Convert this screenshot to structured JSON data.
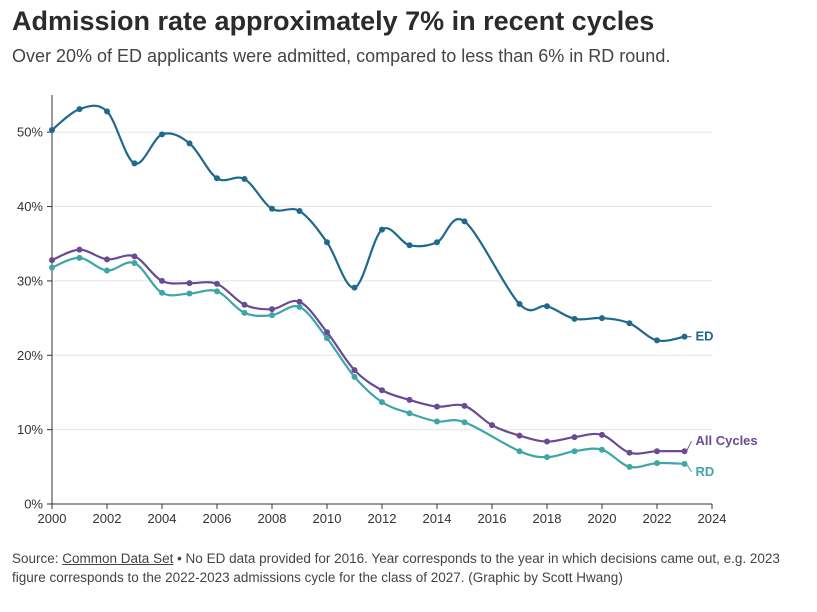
{
  "header": {
    "title": "Admission rate approximately 7% in recent cycles",
    "subtitle": "Over 20% of ED applicants were admitted, compared to less than 6% in RD round."
  },
  "footer": {
    "source_prefix": "Source: ",
    "source_link": "Common Data Set",
    "source_text": " • No ED data provided for 2016. Year corresponds to the year in which decisions came out, e.g. 2023 figure corresponds to the 2022-2023 admissions cycle for the class of 2027. (Graphic by Scott Hwang)"
  },
  "chart_data": {
    "type": "line",
    "title": "Admission rate approximately 7% in recent cycles",
    "xlabel": "",
    "ylabel": "",
    "xlim": [
      2000,
      2024
    ],
    "ylim": [
      0,
      55
    ],
    "x_ticks": [
      2000,
      2002,
      2004,
      2006,
      2008,
      2010,
      2012,
      2014,
      2016,
      2018,
      2020,
      2022,
      2024
    ],
    "y_ticks": [
      0,
      10,
      20,
      30,
      40,
      50
    ],
    "y_tick_labels": [
      "0%",
      "10%",
      "20%",
      "30%",
      "40%",
      "50%"
    ],
    "grid": "horizontal",
    "series": [
      {
        "name": "ED",
        "color": "#1f6a8c",
        "x": [
          2000,
          2001,
          2002,
          2003,
          2004,
          2005,
          2006,
          2007,
          2008,
          2009,
          2010,
          2011,
          2012,
          2013,
          2014,
          2015,
          2017,
          2018,
          2019,
          2020,
          2021,
          2022,
          2023
        ],
        "values": [
          50.3,
          53.1,
          52.8,
          45.8,
          49.7,
          48.5,
          43.8,
          43.7,
          39.7,
          39.4,
          35.2,
          29.1,
          36.9,
          34.8,
          35.2,
          38.0,
          26.9,
          26.6,
          24.9,
          25.0,
          24.3,
          22.0,
          22.5
        ]
      },
      {
        "name": "All Cycles",
        "color": "#6a4a94",
        "x": [
          2000,
          2001,
          2002,
          2003,
          2004,
          2005,
          2006,
          2007,
          2008,
          2009,
          2010,
          2011,
          2012,
          2013,
          2014,
          2015,
          2016,
          2017,
          2018,
          2019,
          2020,
          2021,
          2022,
          2023
        ],
        "values": [
          32.8,
          34.2,
          32.9,
          33.3,
          30.0,
          29.7,
          29.6,
          26.8,
          26.2,
          27.2,
          23.1,
          18.0,
          15.3,
          14.0,
          13.1,
          13.2,
          10.6,
          9.2,
          8.4,
          9.0,
          9.3,
          6.9,
          7.1,
          7.1
        ]
      },
      {
        "name": "RD",
        "color": "#3fa6a6",
        "x": [
          2000,
          2001,
          2002,
          2003,
          2004,
          2005,
          2006,
          2007,
          2008,
          2009,
          2010,
          2011,
          2012,
          2013,
          2014,
          2015,
          2017,
          2018,
          2019,
          2020,
          2021,
          2022,
          2023
        ],
        "values": [
          31.8,
          33.1,
          31.4,
          32.4,
          28.4,
          28.3,
          28.6,
          25.7,
          25.4,
          26.5,
          22.3,
          17.1,
          13.7,
          12.2,
          11.1,
          11.0,
          7.1,
          6.3,
          7.1,
          7.3,
          5.0,
          5.5,
          5.4
        ]
      }
    ]
  }
}
